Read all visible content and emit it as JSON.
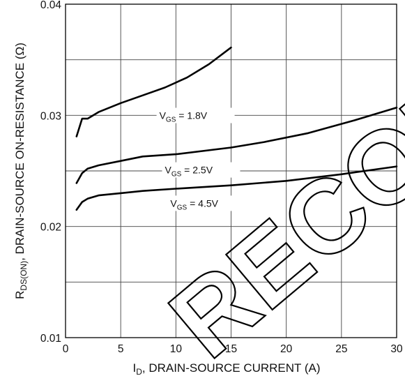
{
  "chart_data": {
    "type": "line",
    "xlabel_main": "I",
    "xlabel_sub": "D",
    "xlabel_rest": ", DRAIN-SOURCE CURRENT (A)",
    "ylabel_main": "R",
    "ylabel_sub": "DS(ON)",
    "ylabel_rest": ", DRAIN-SOURCE ON-RESISTANCE (Ω)",
    "xlim": [
      0,
      30
    ],
    "ylim": [
      0.01,
      0.04
    ],
    "x_ticks": [
      0,
      5,
      10,
      15,
      20,
      25,
      30
    ],
    "x_tick_labels": [
      "0",
      "5",
      "10",
      "15",
      "20",
      "25",
      "30"
    ],
    "y_ticks": [
      0.01,
      0.02,
      0.03,
      0.04
    ],
    "y_tick_labels": [
      "0.01",
      "0.02",
      "0.03",
      "0.04"
    ],
    "minor_grid_y": [
      0.015,
      0.025,
      0.035
    ],
    "grid": true,
    "series": [
      {
        "name": "VGS = 1.8V",
        "label_main": "V",
        "label_sub": "GS",
        "label_rest": " = 1.8V",
        "label_anchor": [
          8.5,
          0.0298
        ],
        "x": [
          1,
          1.5,
          2,
          3,
          5,
          7,
          9,
          11,
          13,
          15
        ],
        "y": [
          0.0281,
          0.0297,
          0.0297,
          0.0303,
          0.0311,
          0.0318,
          0.0325,
          0.0334,
          0.0346,
          0.0361
        ]
      },
      {
        "name": "VGS = 2.5V",
        "label_main": "V",
        "label_sub": "GS",
        "label_rest": " = 2.5V",
        "label_anchor": [
          9,
          0.0249
        ],
        "x": [
          1,
          1.5,
          2,
          3,
          5,
          7,
          10,
          15,
          18,
          22,
          26,
          30
        ],
        "y": [
          0.0239,
          0.0248,
          0.0252,
          0.0255,
          0.0259,
          0.0263,
          0.0265,
          0.0271,
          0.0276,
          0.0284,
          0.0295,
          0.0307
        ]
      },
      {
        "name": "VGS = 4.5V",
        "label_main": "V",
        "label_sub": "GS",
        "label_rest": " = 4.5V",
        "label_anchor": [
          9.5,
          0.0219
        ],
        "x": [
          1,
          1.5,
          2,
          3,
          5,
          7,
          10,
          15,
          20,
          25,
          30
        ],
        "y": [
          0.0215,
          0.0222,
          0.0225,
          0.0228,
          0.023,
          0.0232,
          0.0234,
          0.0237,
          0.0241,
          0.0247,
          0.0254
        ]
      }
    ]
  },
  "watermark": {
    "text": "RECOMMEN",
    "color": "#000000"
  }
}
